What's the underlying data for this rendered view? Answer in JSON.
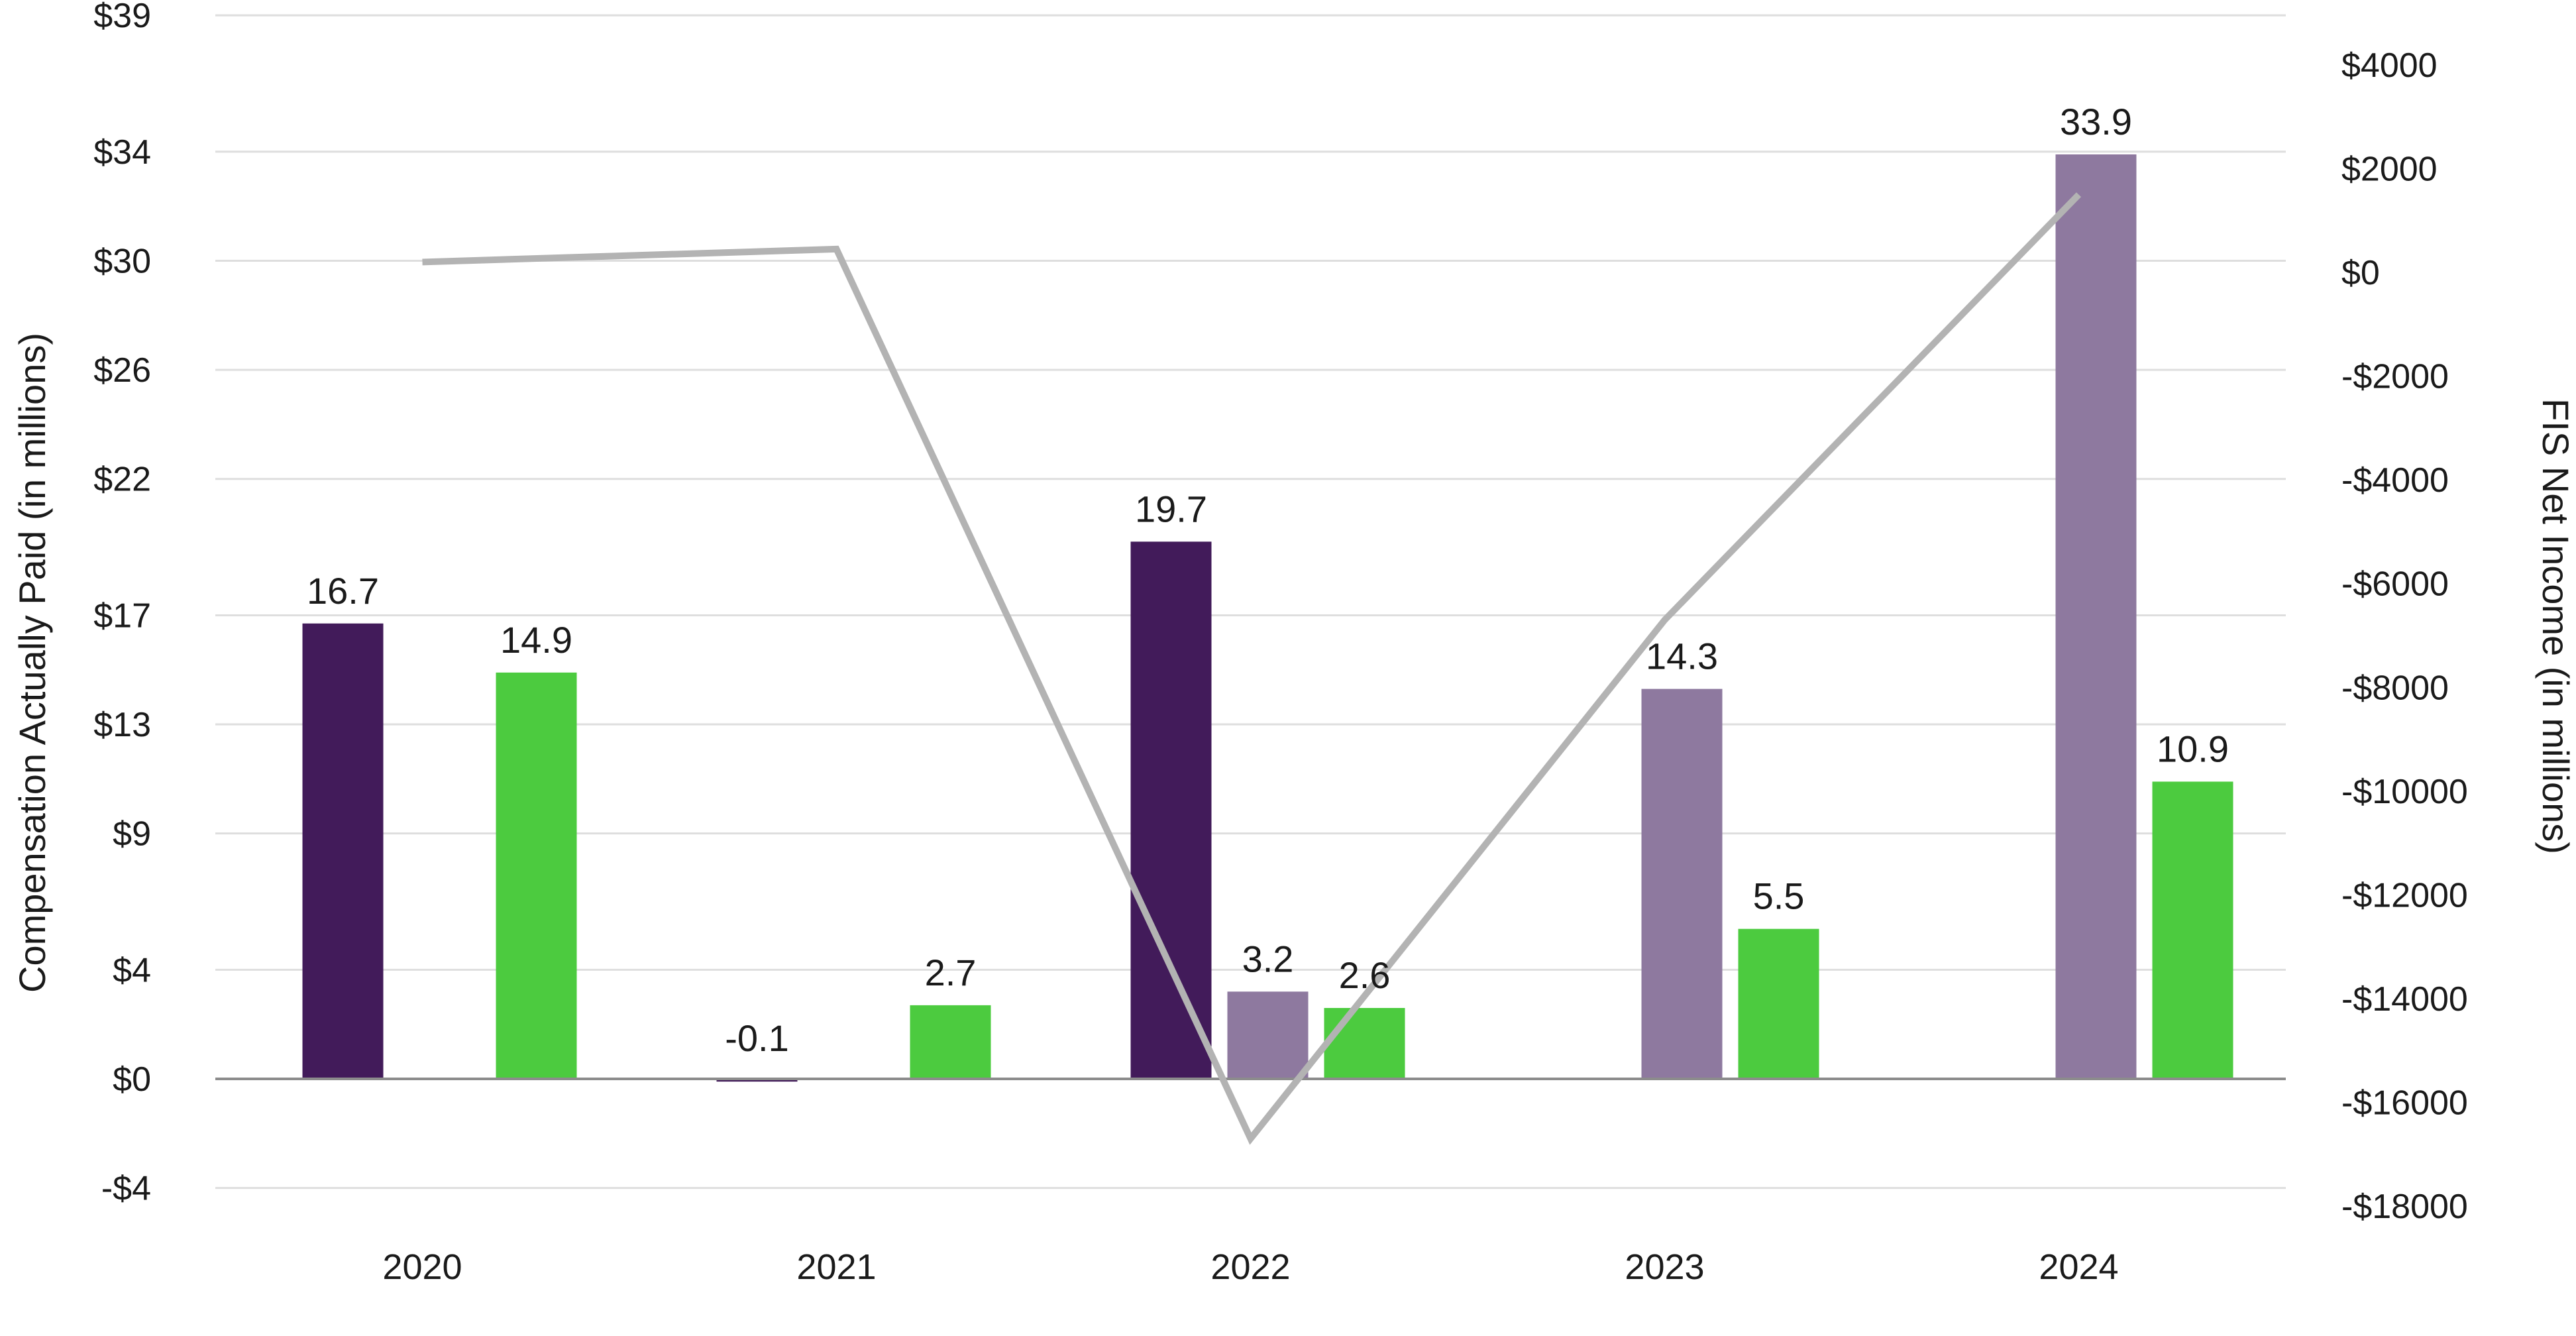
{
  "chart_data": {
    "type": "bar",
    "categories": [
      "2020",
      "2021",
      "2022",
      "2023",
      "2024"
    ],
    "ylabel": "Compensation Actually Paid (in millions)",
    "y2label": "FIS Net Income (in millions)",
    "ylim": [
      -4,
      39
    ],
    "yticks": [
      -4,
      0,
      4,
      9,
      13,
      17,
      22,
      26,
      30,
      34,
      39
    ],
    "ytick_labels": [
      "-$4",
      "$0",
      "$4",
      "$9",
      "$13",
      "$17",
      "$22",
      "$26",
      "$30",
      "$34",
      "$39"
    ],
    "y2lim": [
      -18000,
      4000
    ],
    "y2ticks": [
      -18000,
      -16000,
      -14000,
      -12000,
      -10000,
      -8000,
      -6000,
      -4000,
      -2000,
      0,
      2000,
      4000
    ],
    "y2tick_labels": [
      "-$18000",
      "-$16000",
      "-$14000",
      "-$12000",
      "-$10000",
      "-$8000",
      "-$6000",
      "-$4000",
      "-$2000",
      "$0",
      "$2000",
      "$4000"
    ],
    "grid": true,
    "series": [
      {
        "color": "#421b5a",
        "slot": 0,
        "values": [
          16.7,
          -0.1,
          19.7,
          null,
          null
        ],
        "labels": [
          "16.7",
          "-0.1",
          "19.7",
          "",
          ""
        ]
      },
      {
        "color": "#8e799f",
        "slot": 1,
        "values": [
          null,
          null,
          3.2,
          14.3,
          33.9
        ],
        "labels": [
          "",
          "",
          "3.2",
          "14.3",
          "33.9"
        ]
      },
      {
        "color": "#4ccb3f",
        "slot": 2,
        "values": [
          14.9,
          2.7,
          2.6,
          5.5,
          10.9
        ],
        "labels": [
          "14.9",
          "2.7",
          "2.6",
          "5.5",
          "10.9"
        ]
      }
    ],
    "line": {
      "color": "#b3b3b3",
      "axis": "y2",
      "values": [
        200,
        450,
        -16700,
        -6700,
        1500
      ]
    }
  }
}
